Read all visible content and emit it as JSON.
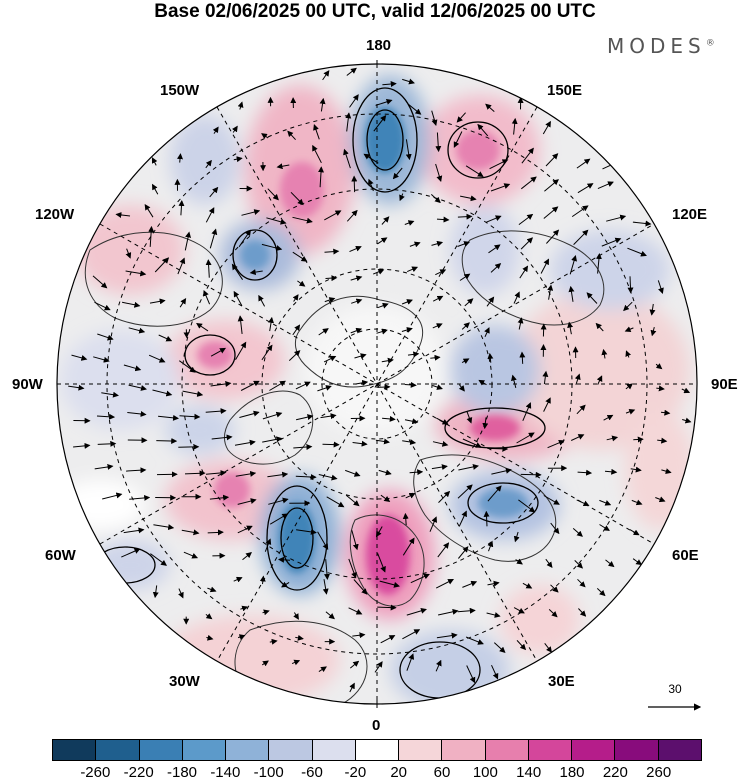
{
  "title": "Base 02/06/2025 00 UTC, valid 12/06/2025 00 UTC",
  "brand": "MODES",
  "brand_mark": "®",
  "map": {
    "projection": "north-polar-stereographic",
    "longitude_labels": {
      "top": "180",
      "bottom": "0",
      "left": "90W",
      "right": "90E",
      "upper_left_1": "150W",
      "upper_left_2": "120W",
      "lower_left_1": "60W",
      "lower_left_2": "30W",
      "upper_right_1": "150E",
      "upper_right_2": "120E",
      "lower_right_1": "60E",
      "lower_right_2": "30E"
    },
    "reference_vector_label": "30",
    "colorbar": {
      "ticks": [
        "-260",
        "-220",
        "-180",
        "-140",
        "-100",
        "-60",
        "-20",
        "20",
        "60",
        "100",
        "140",
        "180",
        "220",
        "260"
      ],
      "colors": [
        "#103a5c",
        "#1f5f8e",
        "#3a7fb4",
        "#5c9aca",
        "#8fb2d8",
        "#bcc8e2",
        "#dcdfee",
        "#ffffff",
        "#f5d6d9",
        "#f0b1c3",
        "#e77fad",
        "#d4469b",
        "#b51d8a",
        "#880c7c",
        "#5c0f6d"
      ]
    }
  }
}
